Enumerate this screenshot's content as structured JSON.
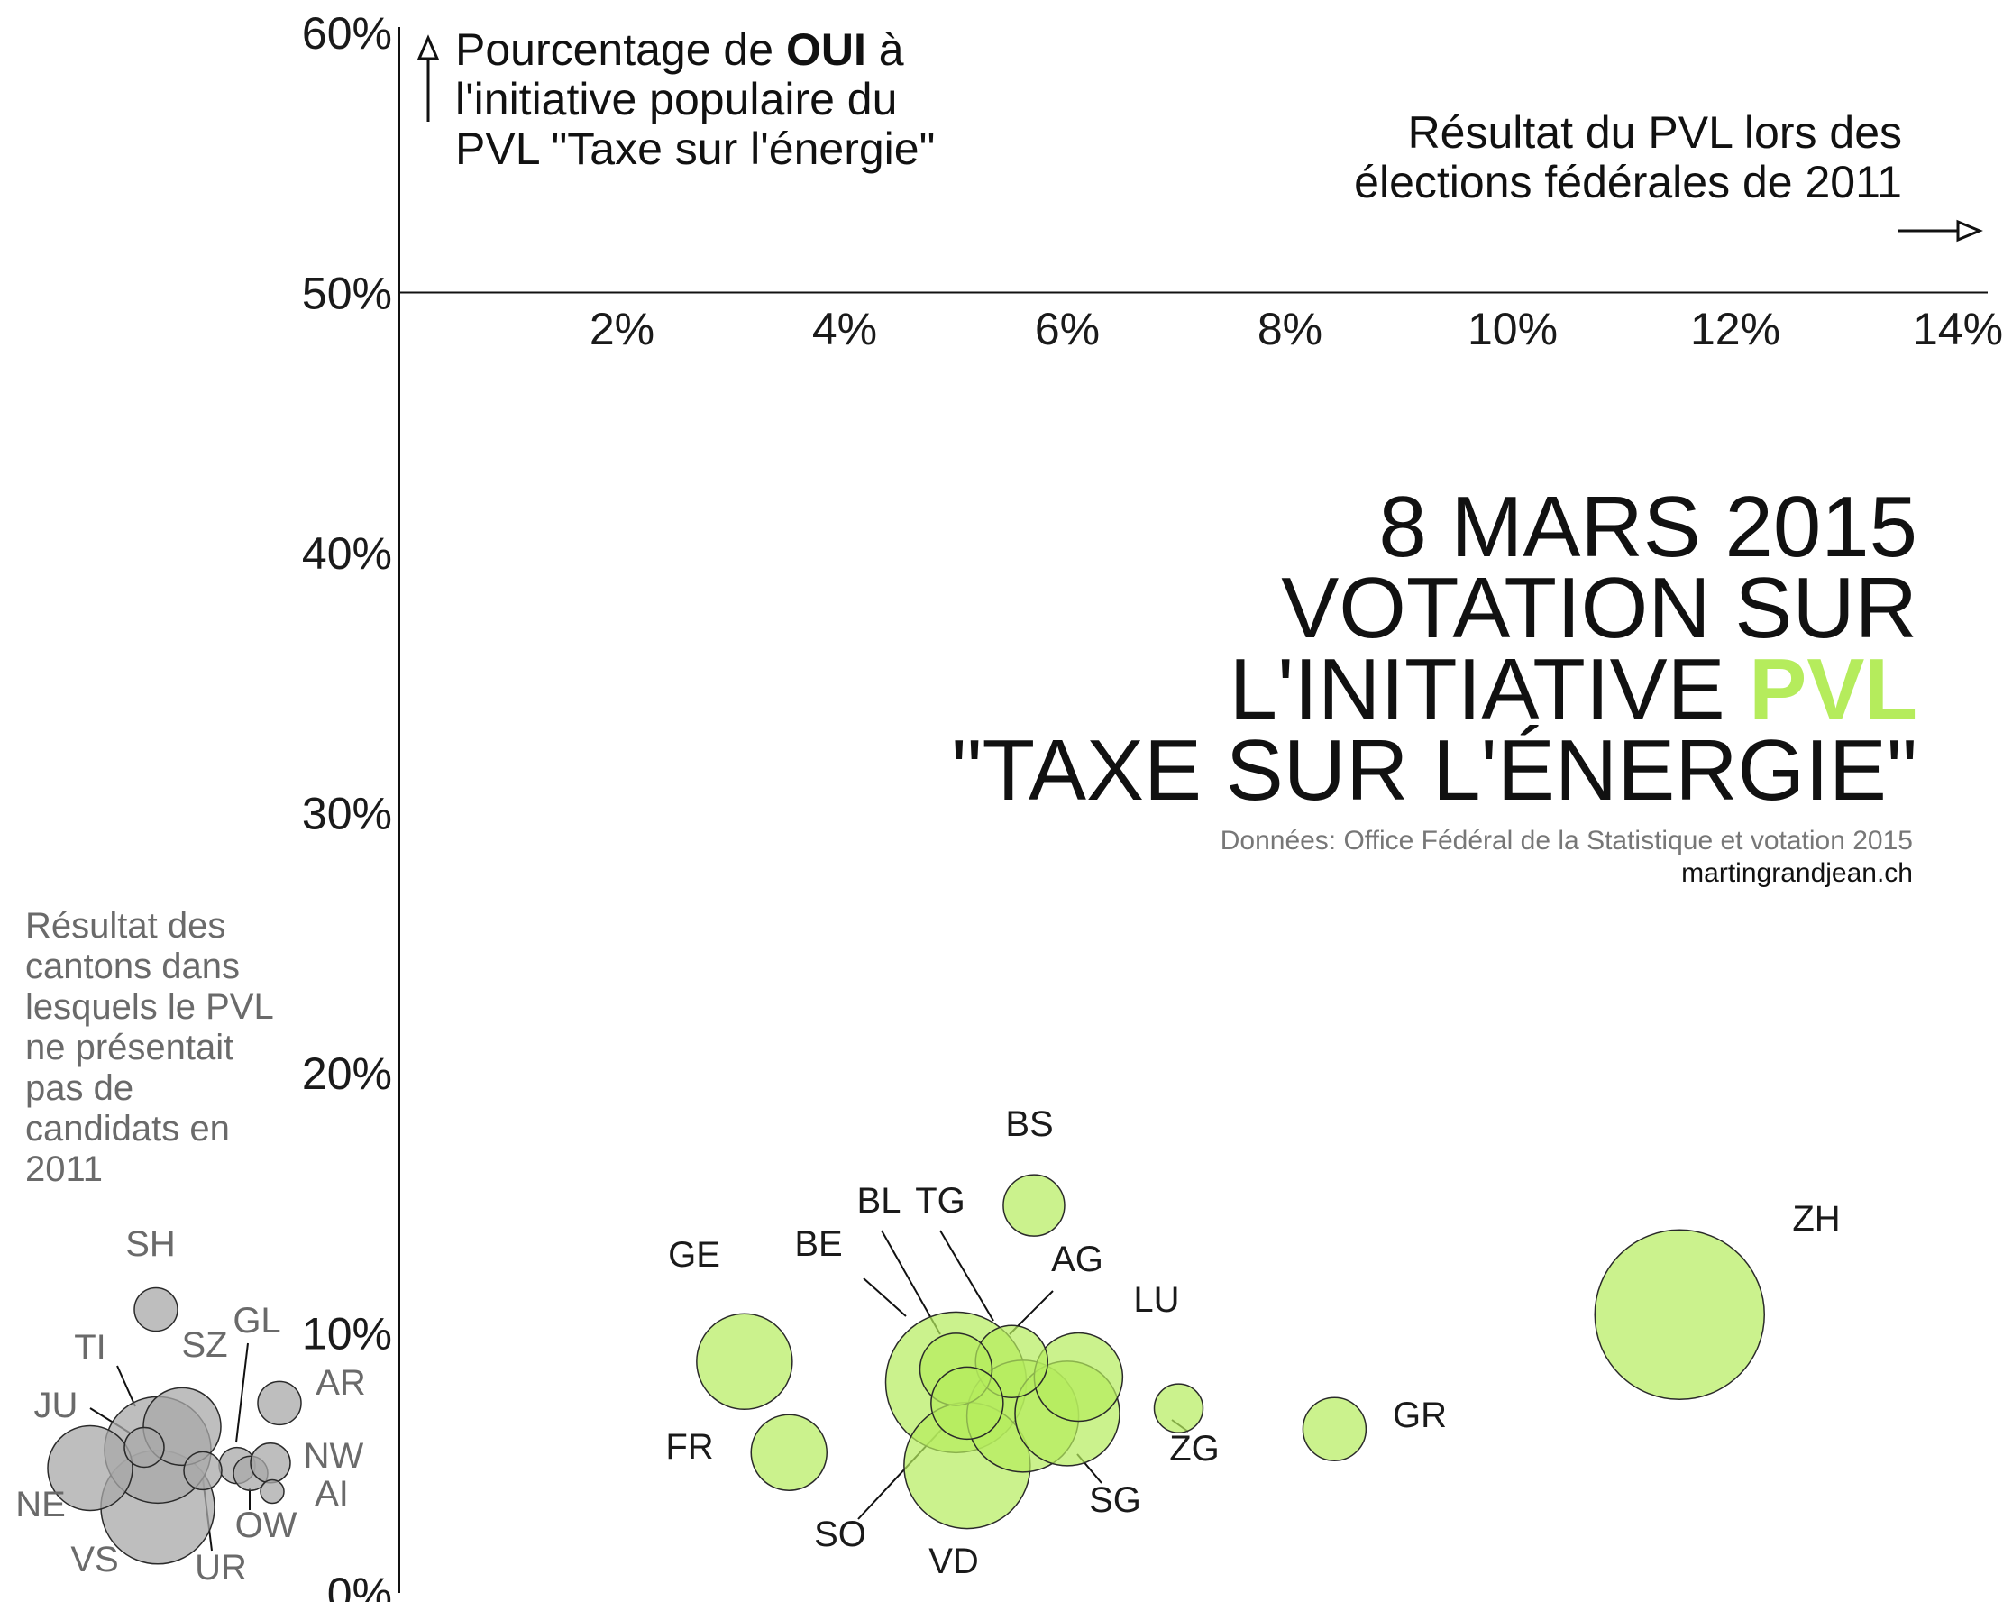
{
  "chart_data": {
    "type": "scatter",
    "title_lines": [
      "8 MARS 2015",
      "VOTATION SUR",
      "L'INITIATIVE ",
      "\"TAXE SUR L'ÉNERGIE\""
    ],
    "title_highlight": "PVL",
    "source": "Données: Office Fédéral de la Statistique et votation 2015",
    "site": "martingrandjean.ch",
    "ylabel_parts": {
      "before": "Pourcentage de ",
      "bold": "OUI",
      "after": " à",
      "line2": "l'initiative populaire du",
      "line3": "PVL \"Taxe sur l'énergie\""
    },
    "xlabel_lines": [
      "Résultat du PVL lors des",
      "élections fédérales de 2011"
    ],
    "side_note": "Résultat des cantons dans lesquels le PVL ne présentait pas de candidats en 2011",
    "x_ticks": [
      "2%",
      "4%",
      "6%",
      "8%",
      "10%",
      "12%",
      "14%"
    ],
    "x_tick_values": [
      2,
      4,
      6,
      8,
      10,
      12,
      14
    ],
    "y_ticks": [
      "0%",
      "10%",
      "20%",
      "30%",
      "40%",
      "50%",
      "60%"
    ],
    "y_tick_values": [
      0,
      10,
      20,
      30,
      40,
      50,
      60
    ],
    "xlim": [
      0,
      14.3
    ],
    "ylim": [
      0,
      60
    ],
    "colors": {
      "pvl": "#b5ec5c",
      "no_pvl": "#a8a8a8",
      "highlight": "#b5ec5c"
    },
    "points": [
      {
        "canton": "ZH",
        "x": 11.5,
        "y": 10.7,
        "r": 94
      },
      {
        "canton": "BE",
        "x": 5.0,
        "y": 8.1,
        "r": 78
      },
      {
        "canton": "VD",
        "x": 5.1,
        "y": 4.9,
        "r": 70
      },
      {
        "canton": "AG",
        "x": 5.6,
        "y": 6.8,
        "r": 62
      },
      {
        "canton": "SG",
        "x": 6.0,
        "y": 6.9,
        "r": 58
      },
      {
        "canton": "GE",
        "x": 3.1,
        "y": 8.9,
        "r": 53
      },
      {
        "canton": "LU",
        "x": 6.1,
        "y": 8.3,
        "r": 49
      },
      {
        "canton": "FR",
        "x": 3.5,
        "y": 5.4,
        "r": 42
      },
      {
        "canton": "TG",
        "x": 5.5,
        "y": 8.9,
        "r": 40
      },
      {
        "canton": "BL",
        "x": 5.0,
        "y": 8.6,
        "r": 40
      },
      {
        "canton": "SO",
        "x": 5.1,
        "y": 7.3,
        "r": 40
      },
      {
        "canton": "GR",
        "x": 8.4,
        "y": 6.3,
        "r": 35
      },
      {
        "canton": "BS",
        "x": 5.7,
        "y": 14.9,
        "r": 34
      },
      {
        "canton": "ZG",
        "x": 7.0,
        "y": 7.1,
        "r": 27
      }
    ],
    "no_pvl_points": [
      {
        "canton": "VS",
        "y": 3.3,
        "r": 63
      },
      {
        "canton": "TI",
        "y": 5.5,
        "r": 59
      },
      {
        "canton": "NE",
        "y": 4.8,
        "r": 47
      },
      {
        "canton": "SZ",
        "y": 6.4,
        "r": 43
      },
      {
        "canton": "JU",
        "y": 5.6,
        "r": 22
      },
      {
        "canton": "SH",
        "y": 10.9,
        "r": 24
      },
      {
        "canton": "GL",
        "y": 4.9,
        "r": 20
      },
      {
        "canton": "AR",
        "y": 7.3,
        "r": 24
      },
      {
        "canton": "UR",
        "y": 4.7,
        "r": 21
      },
      {
        "canton": "OW",
        "y": 4.6,
        "r": 19
      },
      {
        "canton": "NW",
        "y": 5.0,
        "r": 22
      },
      {
        "canton": "AI",
        "y": 3.9,
        "r": 13
      }
    ]
  }
}
